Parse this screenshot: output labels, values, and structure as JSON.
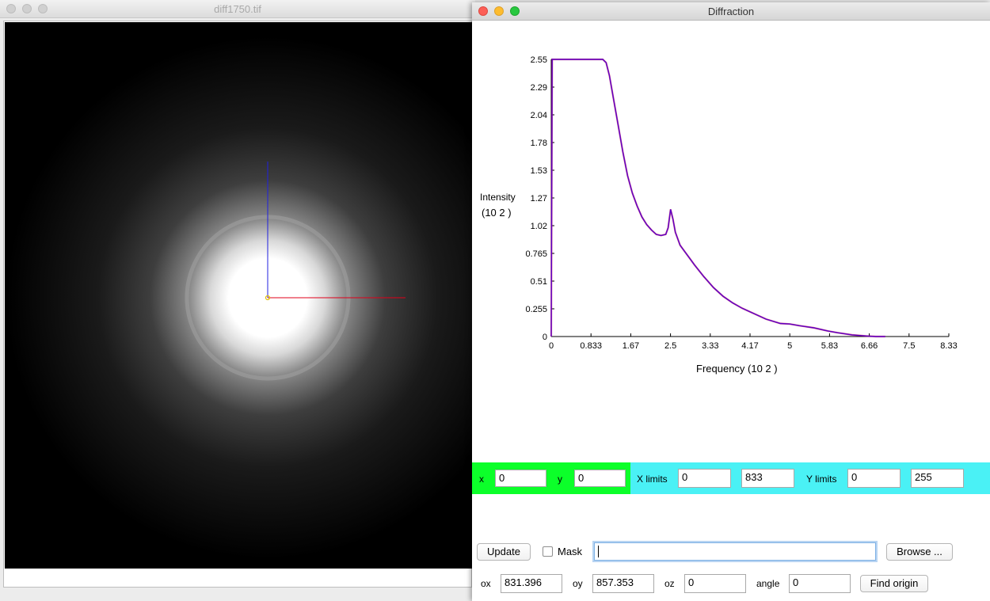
{
  "image_window": {
    "title": "diff1750.tif"
  },
  "diffraction_window": {
    "title": "Diffraction"
  },
  "chart_data": {
    "type": "line",
    "ylabel": "Intensity",
    "ylabel_exp": "(10 2 )",
    "xlabel": "Frequency (10 2 )",
    "xlim": [
      0,
      8.33
    ],
    "ylim": [
      0,
      2.55
    ],
    "xticks": [
      "0",
      "0.833",
      "1.67",
      "2.5",
      "3.33",
      "4.17",
      "5",
      "5.83",
      "6.66",
      "7.5",
      "8.33"
    ],
    "yticks": [
      "0",
      "0.255",
      "0.51",
      "0.765",
      "1.02",
      "1.27",
      "1.53",
      "1.78",
      "2.04",
      "2.29",
      "2.55"
    ],
    "series": [
      {
        "color": "#5a00c8",
        "x": [
          0.0,
          0.02,
          0.05,
          0.5,
          1.0,
          1.08,
          1.15,
          1.22,
          1.3,
          1.4,
          1.5,
          1.6,
          1.7,
          1.8,
          1.9,
          2.0,
          2.1,
          2.2,
          2.3,
          2.4,
          2.45,
          2.5,
          2.55,
          2.6,
          2.7,
          2.8,
          2.9,
          3.0,
          3.2,
          3.4,
          3.6,
          3.8,
          4.0,
          4.2,
          4.5,
          4.8,
          5.0,
          5.2,
          5.5,
          5.8,
          6.0,
          6.3,
          6.6,
          6.8,
          7.0
        ],
        "y": [
          0.0,
          2.55,
          2.55,
          2.55,
          2.55,
          2.55,
          2.52,
          2.4,
          2.2,
          1.95,
          1.7,
          1.48,
          1.32,
          1.2,
          1.1,
          1.03,
          0.98,
          0.94,
          0.93,
          0.94,
          1.0,
          1.17,
          1.08,
          0.96,
          0.84,
          0.78,
          0.72,
          0.66,
          0.55,
          0.45,
          0.37,
          0.31,
          0.26,
          0.22,
          0.16,
          0.12,
          0.115,
          0.1,
          0.08,
          0.05,
          0.035,
          0.015,
          0.005,
          0.0,
          0.0
        ]
      }
    ]
  },
  "controls": {
    "x_label": "x",
    "x_value": "0",
    "y_label": "y",
    "y_value": "0",
    "xlimits_label": "X limits",
    "xlim_min": "0",
    "xlim_max": "833",
    "ylimits_label": "Y limits",
    "ylim_min": "0",
    "ylim_max": "255",
    "update_button": "Update",
    "mask_label": "Mask",
    "mask_path": "",
    "browse_button": "Browse ...",
    "ox_label": "ox",
    "ox_value": "831.396",
    "oy_label": "oy",
    "oy_value": "857.353",
    "oz_label": "oz",
    "oz_value": "0",
    "angle_label": "angle",
    "angle_value": "0",
    "find_origin_button": "Find origin"
  },
  "colors": {
    "coord_band": "#0cff2a",
    "limits_band": "#4af1f5",
    "plot_line": "#5a00c8",
    "axis_red_line": "#e0001a",
    "axis_blue_line": "#2020e0"
  }
}
